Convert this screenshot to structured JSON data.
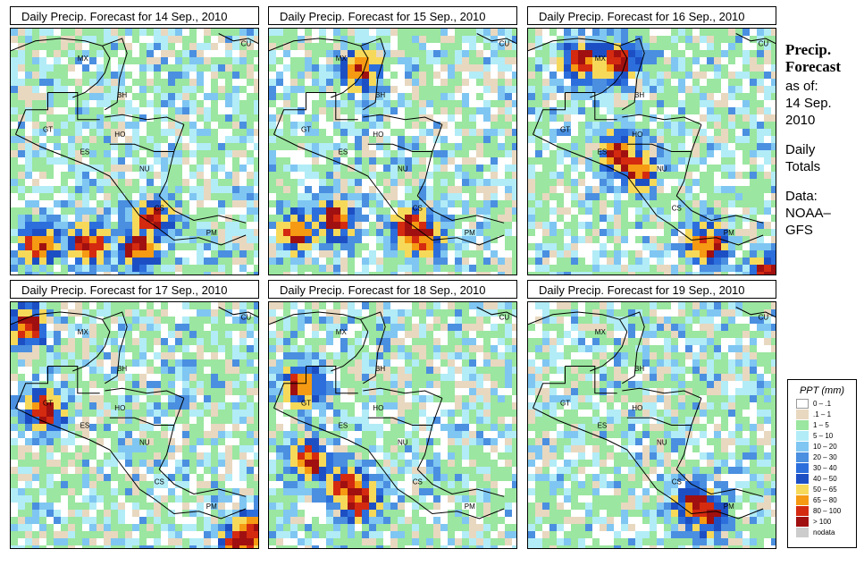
{
  "panels": [
    {
      "title": "Daily Precip. Forecast for  14 Sep., 2010",
      "day": 0
    },
    {
      "title": "Daily Precip. Forecast for  15 Sep., 2010",
      "day": 1
    },
    {
      "title": "Daily Precip. Forecast for  16 Sep., 2010",
      "day": 2
    },
    {
      "title": "Daily Precip. Forecast for  17 Sep., 2010",
      "day": 3
    },
    {
      "title": "Daily Precip. Forecast for  18 Sep., 2010",
      "day": 4
    },
    {
      "title": "Daily Precip. Forecast for  19 Sep., 2010",
      "day": 5
    }
  ],
  "country_labels": [
    "MX",
    "CU",
    "BH",
    "GT",
    "HO",
    "ES",
    "NU",
    "CS",
    "PM"
  ],
  "side": {
    "title_line1": "Precip.",
    "title_line2": "Forecast",
    "asof_line1": "as of:",
    "asof_line2": "14 Sep.",
    "asof_line3": "2010",
    "totals_line1": "Daily",
    "totals_line2": "Totals",
    "data_line1": "Data:",
    "data_line2": "NOAA–",
    "data_line3": "GFS"
  },
  "legend": {
    "title": "PPT (mm)",
    "items": [
      {
        "label": "0 – .1",
        "color": "#ffffff"
      },
      {
        "label": ".1 – 1",
        "color": "#e8d8c0"
      },
      {
        "label": "1 – 5",
        "color": "#9be6a0"
      },
      {
        "label": "5 – 10",
        "color": "#b2ecf7"
      },
      {
        "label": "10 – 20",
        "color": "#7fc6f2"
      },
      {
        "label": "20 – 30",
        "color": "#4a8fe0"
      },
      {
        "label": "30 – 40",
        "color": "#2c6fdc"
      },
      {
        "label": "40 – 50",
        "color": "#1d4fc4"
      },
      {
        "label": "50 – 65",
        "color": "#f7d95a"
      },
      {
        "label": "65 – 80",
        "color": "#f59a12"
      },
      {
        "label": "80 – 100",
        "color": "#d42a10"
      },
      {
        "label": "> 100",
        "color": "#a01010"
      },
      {
        "label": "nodata",
        "color": "#cccccc"
      }
    ]
  }
}
